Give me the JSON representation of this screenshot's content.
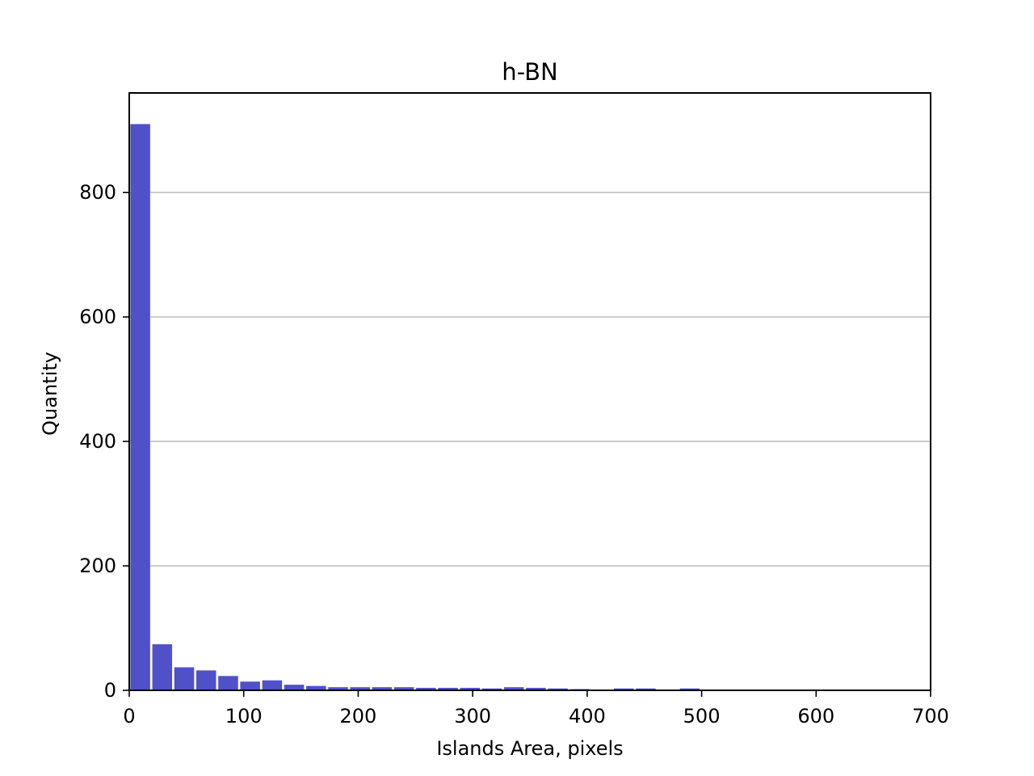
{
  "chart_data": {
    "type": "bar",
    "title": "h-BN",
    "xlabel": "Islands Area, pixels",
    "ylabel": "Quantity",
    "xlim": [
      0,
      700
    ],
    "ylim": [
      0,
      960
    ],
    "xticks": [
      0,
      100,
      200,
      300,
      400,
      500,
      600,
      700
    ],
    "yticks": [
      0,
      200,
      400,
      600,
      800
    ],
    "grid": "y",
    "bar_color": "#5050C8",
    "bin_width": 19.2,
    "bins": [
      {
        "x0": 0.0,
        "value": 910
      },
      {
        "x0": 19.2,
        "value": 74
      },
      {
        "x0": 38.4,
        "value": 37
      },
      {
        "x0": 57.6,
        "value": 32
      },
      {
        "x0": 76.8,
        "value": 23
      },
      {
        "x0": 96.0,
        "value": 14
      },
      {
        "x0": 115.2,
        "value": 16
      },
      {
        "x0": 134.4,
        "value": 9
      },
      {
        "x0": 153.6,
        "value": 7
      },
      {
        "x0": 172.8,
        "value": 5
      },
      {
        "x0": 192.0,
        "value": 5
      },
      {
        "x0": 211.2,
        "value": 5
      },
      {
        "x0": 230.4,
        "value": 5
      },
      {
        "x0": 249.6,
        "value": 4
      },
      {
        "x0": 268.8,
        "value": 4
      },
      {
        "x0": 288.0,
        "value": 4
      },
      {
        "x0": 307.2,
        "value": 3
      },
      {
        "x0": 326.4,
        "value": 5
      },
      {
        "x0": 345.6,
        "value": 4
      },
      {
        "x0": 364.8,
        "value": 3
      },
      {
        "x0": 384.0,
        "value": 2
      },
      {
        "x0": 403.2,
        "value": 1
      },
      {
        "x0": 422.4,
        "value": 3
      },
      {
        "x0": 441.6,
        "value": 3
      },
      {
        "x0": 460.8,
        "value": 1
      },
      {
        "x0": 480.0,
        "value": 3
      }
    ]
  }
}
